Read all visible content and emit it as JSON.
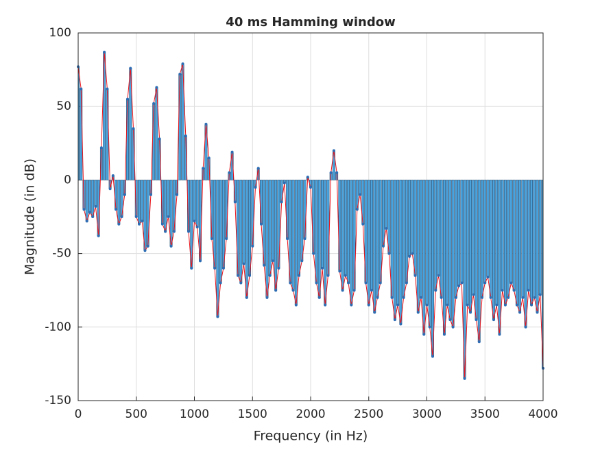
{
  "chart_data": {
    "type": "bar",
    "title": "40 ms Hamming window",
    "xlabel": "Frequency (in Hz)",
    "ylabel": "Magnitude (in dB)",
    "x": [
      0,
      25,
      50,
      75,
      100,
      125,
      150,
      175,
      200,
      225,
      250,
      275,
      300,
      325,
      350,
      375,
      400,
      425,
      450,
      475,
      500,
      525,
      550,
      575,
      600,
      625,
      650,
      675,
      700,
      725,
      750,
      775,
      800,
      825,
      850,
      875,
      900,
      925,
      950,
      975,
      1000,
      1025,
      1050,
      1075,
      1100,
      1125,
      1150,
      1175,
      1200,
      1225,
      1250,
      1275,
      1300,
      1325,
      1350,
      1375,
      1400,
      1425,
      1450,
      1475,
      1500,
      1525,
      1550,
      1575,
      1600,
      1625,
      1650,
      1675,
      1700,
      1725,
      1750,
      1775,
      1800,
      1825,
      1850,
      1875,
      1900,
      1925,
      1950,
      1975,
      2000,
      2025,
      2050,
      2075,
      2100,
      2125,
      2150,
      2175,
      2200,
      2225,
      2250,
      2275,
      2300,
      2325,
      2350,
      2375,
      2400,
      2425,
      2450,
      2475,
      2500,
      2525,
      2550,
      2575,
      2600,
      2625,
      2650,
      2675,
      2700,
      2725,
      2750,
      2775,
      2800,
      2825,
      2850,
      2875,
      2900,
      2925,
      2950,
      2975,
      3000,
      3025,
      3050,
      3075,
      3100,
      3125,
      3150,
      3175,
      3200,
      3225,
      3250,
      3275,
      3300,
      3325,
      3350,
      3375,
      3400,
      3425,
      3450,
      3475,
      3500,
      3525,
      3550,
      3575,
      3600,
      3625,
      3650,
      3675,
      3700,
      3725,
      3750,
      3775,
      3800,
      3825,
      3850,
      3875,
      3900,
      3925,
      3950,
      3975,
      4000
    ],
    "values": [
      77,
      62,
      -20,
      -28,
      -22,
      -25,
      -18,
      -38,
      22,
      87,
      62,
      -6,
      3,
      -20,
      -30,
      -25,
      -10,
      55,
      76,
      35,
      -25,
      -30,
      -28,
      -48,
      -45,
      -10,
      52,
      63,
      28,
      -30,
      -35,
      -25,
      -45,
      -35,
      -10,
      72,
      79,
      30,
      -35,
      -60,
      -28,
      -32,
      -55,
      8,
      38,
      15,
      -40,
      -60,
      -93,
      -70,
      -60,
      -40,
      5,
      19,
      -15,
      -65,
      -70,
      -57,
      -80,
      -65,
      -45,
      -5,
      8,
      -30,
      -58,
      -80,
      -65,
      -55,
      -75,
      -60,
      -15,
      -2,
      -40,
      -70,
      -75,
      -85,
      -65,
      -55,
      -40,
      2,
      -5,
      -50,
      -70,
      -80,
      -60,
      -85,
      -65,
      5,
      20,
      5,
      -62,
      -75,
      -65,
      -70,
      -85,
      -75,
      -20,
      -10,
      -30,
      -70,
      -85,
      -75,
      -90,
      -80,
      -70,
      -45,
      -33,
      -50,
      -80,
      -95,
      -85,
      -98,
      -80,
      -70,
      -52,
      -50,
      -65,
      -90,
      -80,
      -105,
      -85,
      -100,
      -120,
      -75,
      -65,
      -80,
      -105,
      -85,
      -95,
      -100,
      -80,
      -72,
      -70,
      -135,
      -85,
      -90,
      -78,
      -95,
      -110,
      -80,
      -70,
      -66,
      -80,
      -95,
      -85,
      -105,
      -75,
      -85,
      -80,
      -70,
      -75,
      -85,
      -90,
      -80,
      -100,
      -75,
      -85,
      -80,
      -90,
      -78,
      -128
    ],
    "bar_color": "#4aa3dd",
    "line_color": "#e8131b",
    "marker_color": "#2e6db4",
    "xlim": [
      0,
      4000
    ],
    "xticks": [
      0,
      500,
      1000,
      1500,
      2000,
      2500,
      3000,
      3500,
      4000
    ],
    "ylim": [
      -150,
      100
    ],
    "yticks": [
      -150,
      -100,
      -50,
      0,
      50,
      100
    ],
    "grid": true
  }
}
